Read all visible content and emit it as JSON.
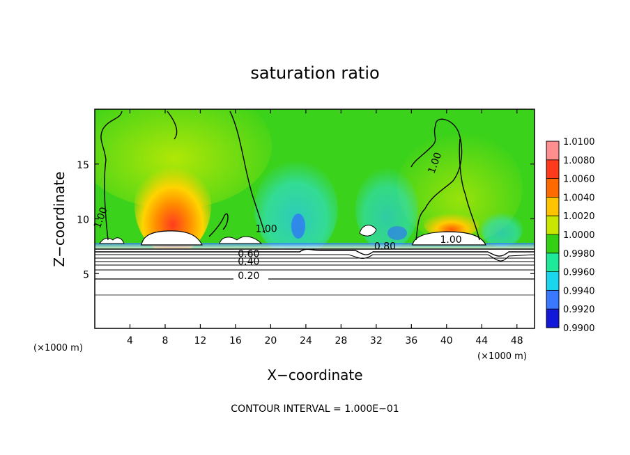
{
  "chart_data": {
    "type": "heatmap",
    "title": "saturation ratio",
    "xlabel": "X−coordinate",
    "ylabel": "Z−coordinate",
    "x_unit_left": "(×1000 m)",
    "x_unit_right": "(×1000 m)",
    "xlim": [
      0,
      50
    ],
    "ylim": [
      0,
      20
    ],
    "x_ticks": [
      4,
      8,
      12,
      16,
      20,
      24,
      28,
      32,
      36,
      40,
      44,
      48
    ],
    "y_ticks": [
      5,
      10,
      15
    ],
    "colorbar": {
      "levels": [
        "1.0100",
        "1.0080",
        "1.0060",
        "1.0040",
        "1.0020",
        "1.0000",
        "0.9980",
        "0.9960",
        "0.9940",
        "0.9920",
        "0.9900"
      ],
      "colors": [
        "#ff8f8f",
        "#ff3b1e",
        "#ff6a00",
        "#ffc400",
        "#c9e600",
        "#34d014",
        "#1ee89a",
        "#1ad7ee",
        "#3a78ff",
        "#1218d8",
        "#4a0a8c"
      ]
    },
    "contour_labels": [
      {
        "text": "1.00",
        "x": 1.0,
        "z": 10.0
      },
      {
        "text": "1.00",
        "x": 19.5,
        "z": 8.8
      },
      {
        "text": "1.00",
        "x": 39.0,
        "z": 15.0
      },
      {
        "text": "1.00",
        "x": 40.5,
        "z": 7.8
      },
      {
        "text": "0.80",
        "x": 33.0,
        "z": 7.2
      },
      {
        "text": "0.60",
        "x": 17.5,
        "z": 6.5
      },
      {
        "text": "0.40",
        "x": 17.5,
        "z": 5.8
      },
      {
        "text": "0.20",
        "x": 17.5,
        "z": 4.5
      }
    ],
    "contour_interval_text": "CONTOUR INTERVAL = 1.000E−01"
  }
}
